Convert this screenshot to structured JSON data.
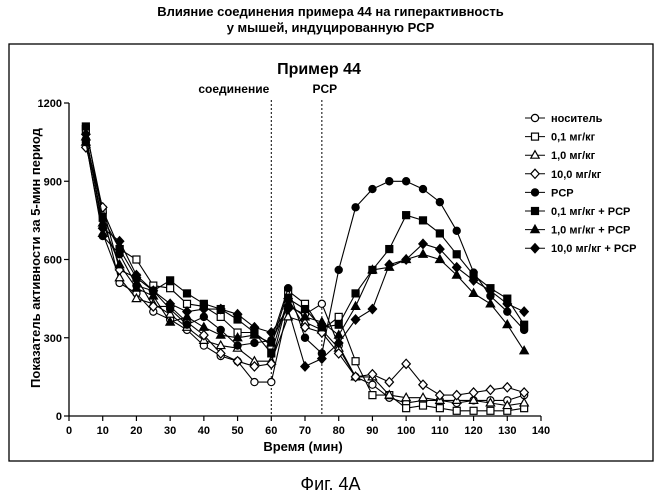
{
  "figure": {
    "title_line1": "Влияние соединения примера 44 на гиперактивность",
    "title_line2": "у мышей, индуцированную PCP",
    "caption": "Фиг. 4А"
  },
  "chart_data": {
    "type": "line",
    "title": "Пример 44",
    "xlabel": "Время (мин)",
    "ylabel": "Показатель активности за 5-мин период",
    "xlim": [
      0,
      140
    ],
    "ylim": [
      0,
      1200
    ],
    "xticks": [
      0,
      10,
      20,
      30,
      40,
      50,
      60,
      70,
      80,
      90,
      100,
      110,
      120,
      130,
      140
    ],
    "yticks": [
      0,
      300,
      600,
      900,
      1200
    ],
    "grid": false,
    "legend_position": "right",
    "annotations": [
      {
        "text": "соединение",
        "x": 60
      },
      {
        "text": "PCP",
        "x": 75
      }
    ],
    "series": [
      {
        "name": "носитель",
        "marker": "circle-open",
        "x": [
          5,
          10,
          15,
          20,
          25,
          30,
          35,
          40,
          45,
          50,
          55,
          60,
          65,
          70,
          75,
          80,
          85,
          90,
          95,
          100,
          105,
          110,
          115,
          120,
          125,
          130,
          135
        ],
        "y": [
          1060,
          780,
          510,
          470,
          400,
          370,
          330,
          270,
          230,
          210,
          130,
          130,
          420,
          390,
          430,
          270,
          150,
          120,
          70,
          50,
          60,
          60,
          50,
          60,
          60,
          60,
          80
        ]
      },
      {
        "name": "0,1 мг/кг",
        "marker": "square-open",
        "x": [
          5,
          10,
          15,
          20,
          25,
          30,
          35,
          40,
          45,
          50,
          55,
          60,
          65,
          70,
          75,
          80,
          85,
          90,
          95,
          100,
          105,
          110,
          115,
          120,
          125,
          130,
          135
        ],
        "y": [
          1100,
          790,
          640,
          600,
          500,
          490,
          430,
          420,
          380,
          320,
          320,
          270,
          480,
          430,
          330,
          380,
          210,
          80,
          80,
          30,
          40,
          30,
          20,
          20,
          20,
          20,
          30
        ]
      },
      {
        "name": "1,0 мг/кг",
        "marker": "triangle-open",
        "x": [
          5,
          10,
          15,
          20,
          25,
          30,
          35,
          40,
          45,
          50,
          55,
          60,
          65,
          70,
          75,
          80,
          85,
          90,
          95,
          100,
          105,
          110,
          115,
          120,
          125,
          130,
          135
        ],
        "y": [
          1050,
          700,
          530,
          450,
          430,
          390,
          340,
          290,
          270,
          260,
          210,
          210,
          380,
          360,
          330,
          260,
          150,
          150,
          80,
          70,
          70,
          60,
          60,
          60,
          50,
          40,
          50
        ]
      },
      {
        "name": "10,0 мг/кг",
        "marker": "diamond-open",
        "x": [
          5,
          10,
          15,
          20,
          25,
          30,
          35,
          40,
          45,
          50,
          55,
          60,
          65,
          70,
          75,
          80,
          85,
          90,
          95,
          100,
          105,
          110,
          115,
          120,
          125,
          130,
          135
        ],
        "y": [
          1030,
          800,
          560,
          530,
          420,
          420,
          360,
          310,
          240,
          210,
          190,
          200,
          450,
          340,
          320,
          240,
          150,
          160,
          130,
          200,
          120,
          80,
          80,
          90,
          100,
          110,
          90
        ]
      },
      {
        "name": "PCP",
        "marker": "circle-filled",
        "x": [
          5,
          10,
          15,
          20,
          25,
          30,
          35,
          40,
          45,
          50,
          55,
          60,
          65,
          70,
          75,
          80,
          85,
          90,
          95,
          100,
          105,
          110,
          115,
          120,
          125,
          130,
          135
        ],
        "y": [
          1050,
          690,
          620,
          500,
          480,
          410,
          350,
          380,
          330,
          270,
          280,
          290,
          490,
          300,
          240,
          560,
          800,
          870,
          900,
          900,
          870,
          820,
          710,
          550,
          460,
          400,
          330
        ]
      },
      {
        "name": "0,1 мг/кг + PCP",
        "marker": "square-filled",
        "x": [
          5,
          10,
          15,
          20,
          25,
          30,
          35,
          40,
          45,
          50,
          55,
          60,
          65,
          70,
          75,
          80,
          85,
          90,
          95,
          100,
          105,
          110,
          115,
          120,
          125,
          130,
          135
        ],
        "y": [
          1110,
          760,
          640,
          530,
          480,
          520,
          470,
          430,
          410,
          370,
          320,
          240,
          450,
          410,
          340,
          350,
          470,
          560,
          640,
          770,
          750,
          700,
          620,
          540,
          490,
          450,
          350
        ]
      },
      {
        "name": "1,0 мг/кг + PCP",
        "marker": "triangle-filled",
        "x": [
          5,
          10,
          15,
          20,
          25,
          30,
          35,
          40,
          45,
          50,
          55,
          60,
          65,
          70,
          75,
          80,
          85,
          90,
          95,
          100,
          105,
          110,
          115,
          120,
          125,
          130,
          135
        ],
        "y": [
          1070,
          740,
          580,
          490,
          460,
          360,
          380,
          340,
          310,
          300,
          310,
          280,
          430,
          380,
          360,
          310,
          420,
          560,
          570,
          600,
          620,
          600,
          540,
          470,
          430,
          350,
          250
        ]
      },
      {
        "name": "10,0 мг/кг + PCP",
        "marker": "diamond-filled",
        "x": [
          5,
          10,
          15,
          20,
          25,
          30,
          35,
          40,
          45,
          50,
          55,
          60,
          65,
          70,
          75,
          80,
          85,
          90,
          95,
          100,
          105,
          110,
          115,
          120,
          125,
          130,
          135
        ],
        "y": [
          1080,
          720,
          670,
          540,
          480,
          430,
          400,
          410,
          410,
          390,
          340,
          320,
          410,
          190,
          220,
          280,
          370,
          410,
          580,
          600,
          660,
          640,
          570,
          520,
          480,
          430,
          400
        ]
      }
    ]
  }
}
